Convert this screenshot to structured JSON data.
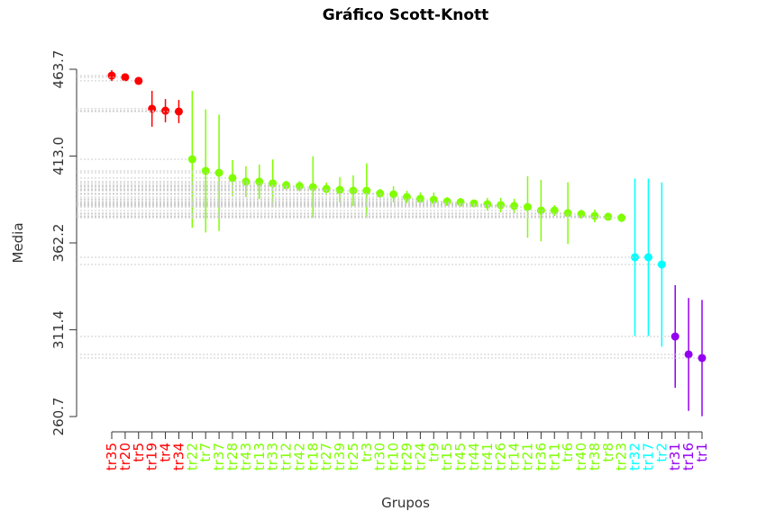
{
  "chart_data": {
    "type": "errorbar",
    "title": "Gráfico Scott-Knott",
    "x_label": "Grupos",
    "y_label": "Media",
    "categories": [
      "tr35",
      "tr20",
      "tr5",
      "tr19",
      "tr4",
      "tr34",
      "tr22",
      "tr7",
      "tr37",
      "tr28",
      "tr43",
      "tr13",
      "tr33",
      "tr12",
      "tr42",
      "tr18",
      "tr27",
      "tr39",
      "tr25",
      "tr3",
      "tr30",
      "tr10",
      "tr29",
      "tr24",
      "tr9",
      "tr15",
      "tr45",
      "tr44",
      "tr41",
      "tr26",
      "tr14",
      "tr21",
      "tr36",
      "tr11",
      "tr6",
      "tr40",
      "tr38",
      "tr8",
      "tr23",
      "tr32",
      "tr17",
      "tr2",
      "tr31",
      "tr16",
      "tr1"
    ],
    "values": [
      460.0,
      459.0,
      456.9,
      440.6,
      439.5,
      439.0,
      411.1,
      404.3,
      403.2,
      400.1,
      398.0,
      398.0,
      397.0,
      395.9,
      395.4,
      394.8,
      393.8,
      393.2,
      392.7,
      392.7,
      391.1,
      390.6,
      389.0,
      388.0,
      387.4,
      386.4,
      385.9,
      385.3,
      384.8,
      384.3,
      383.8,
      383.2,
      381.1,
      381.1,
      379.6,
      379.0,
      378.0,
      377.5,
      376.9,
      353.8,
      353.8,
      349.6,
      307.5,
      297.0,
      294.9
    ],
    "errors": [
      3.2,
      1.6,
      1,
      10.5,
      6.8,
      6.8,
      40,
      36,
      34,
      10.5,
      9,
      10,
      14,
      2.6,
      3,
      18,
      3.7,
      7.4,
      9,
      16,
      2.6,
      4.7,
      3.7,
      3.7,
      4.2,
      2.6,
      2.6,
      2.1,
      3.7,
      4.2,
      4.2,
      18,
      18,
      3.2,
      18,
      2.6,
      3.7,
      2.1,
      2.6,
      46,
      46,
      48,
      30,
      33,
      34
    ],
    "colors": [
      "#ff0000",
      "#ff0000",
      "#ff0000",
      "#ff0000",
      "#ff0000",
      "#ff0000",
      "#7fff00",
      "#7fff00",
      "#7fff00",
      "#7fff00",
      "#7fff00",
      "#7fff00",
      "#7fff00",
      "#7fff00",
      "#7fff00",
      "#7fff00",
      "#7fff00",
      "#7fff00",
      "#7fff00",
      "#7fff00",
      "#7fff00",
      "#7fff00",
      "#7fff00",
      "#7fff00",
      "#7fff00",
      "#7fff00",
      "#7fff00",
      "#7fff00",
      "#7fff00",
      "#7fff00",
      "#7fff00",
      "#7fff00",
      "#7fff00",
      "#7fff00",
      "#7fff00",
      "#7fff00",
      "#7fff00",
      "#7fff00",
      "#7fff00",
      "#00ffff",
      "#00ffff",
      "#00ffff",
      "#9400f0",
      "#9400f0",
      "#9400f0"
    ],
    "ylim": [
      260.7,
      463.7
    ],
    "yticks": [
      260.7,
      311.4,
      362.2,
      {
        "value": 413,
        "label": "413.0"
      },
      463.7
    ]
  }
}
